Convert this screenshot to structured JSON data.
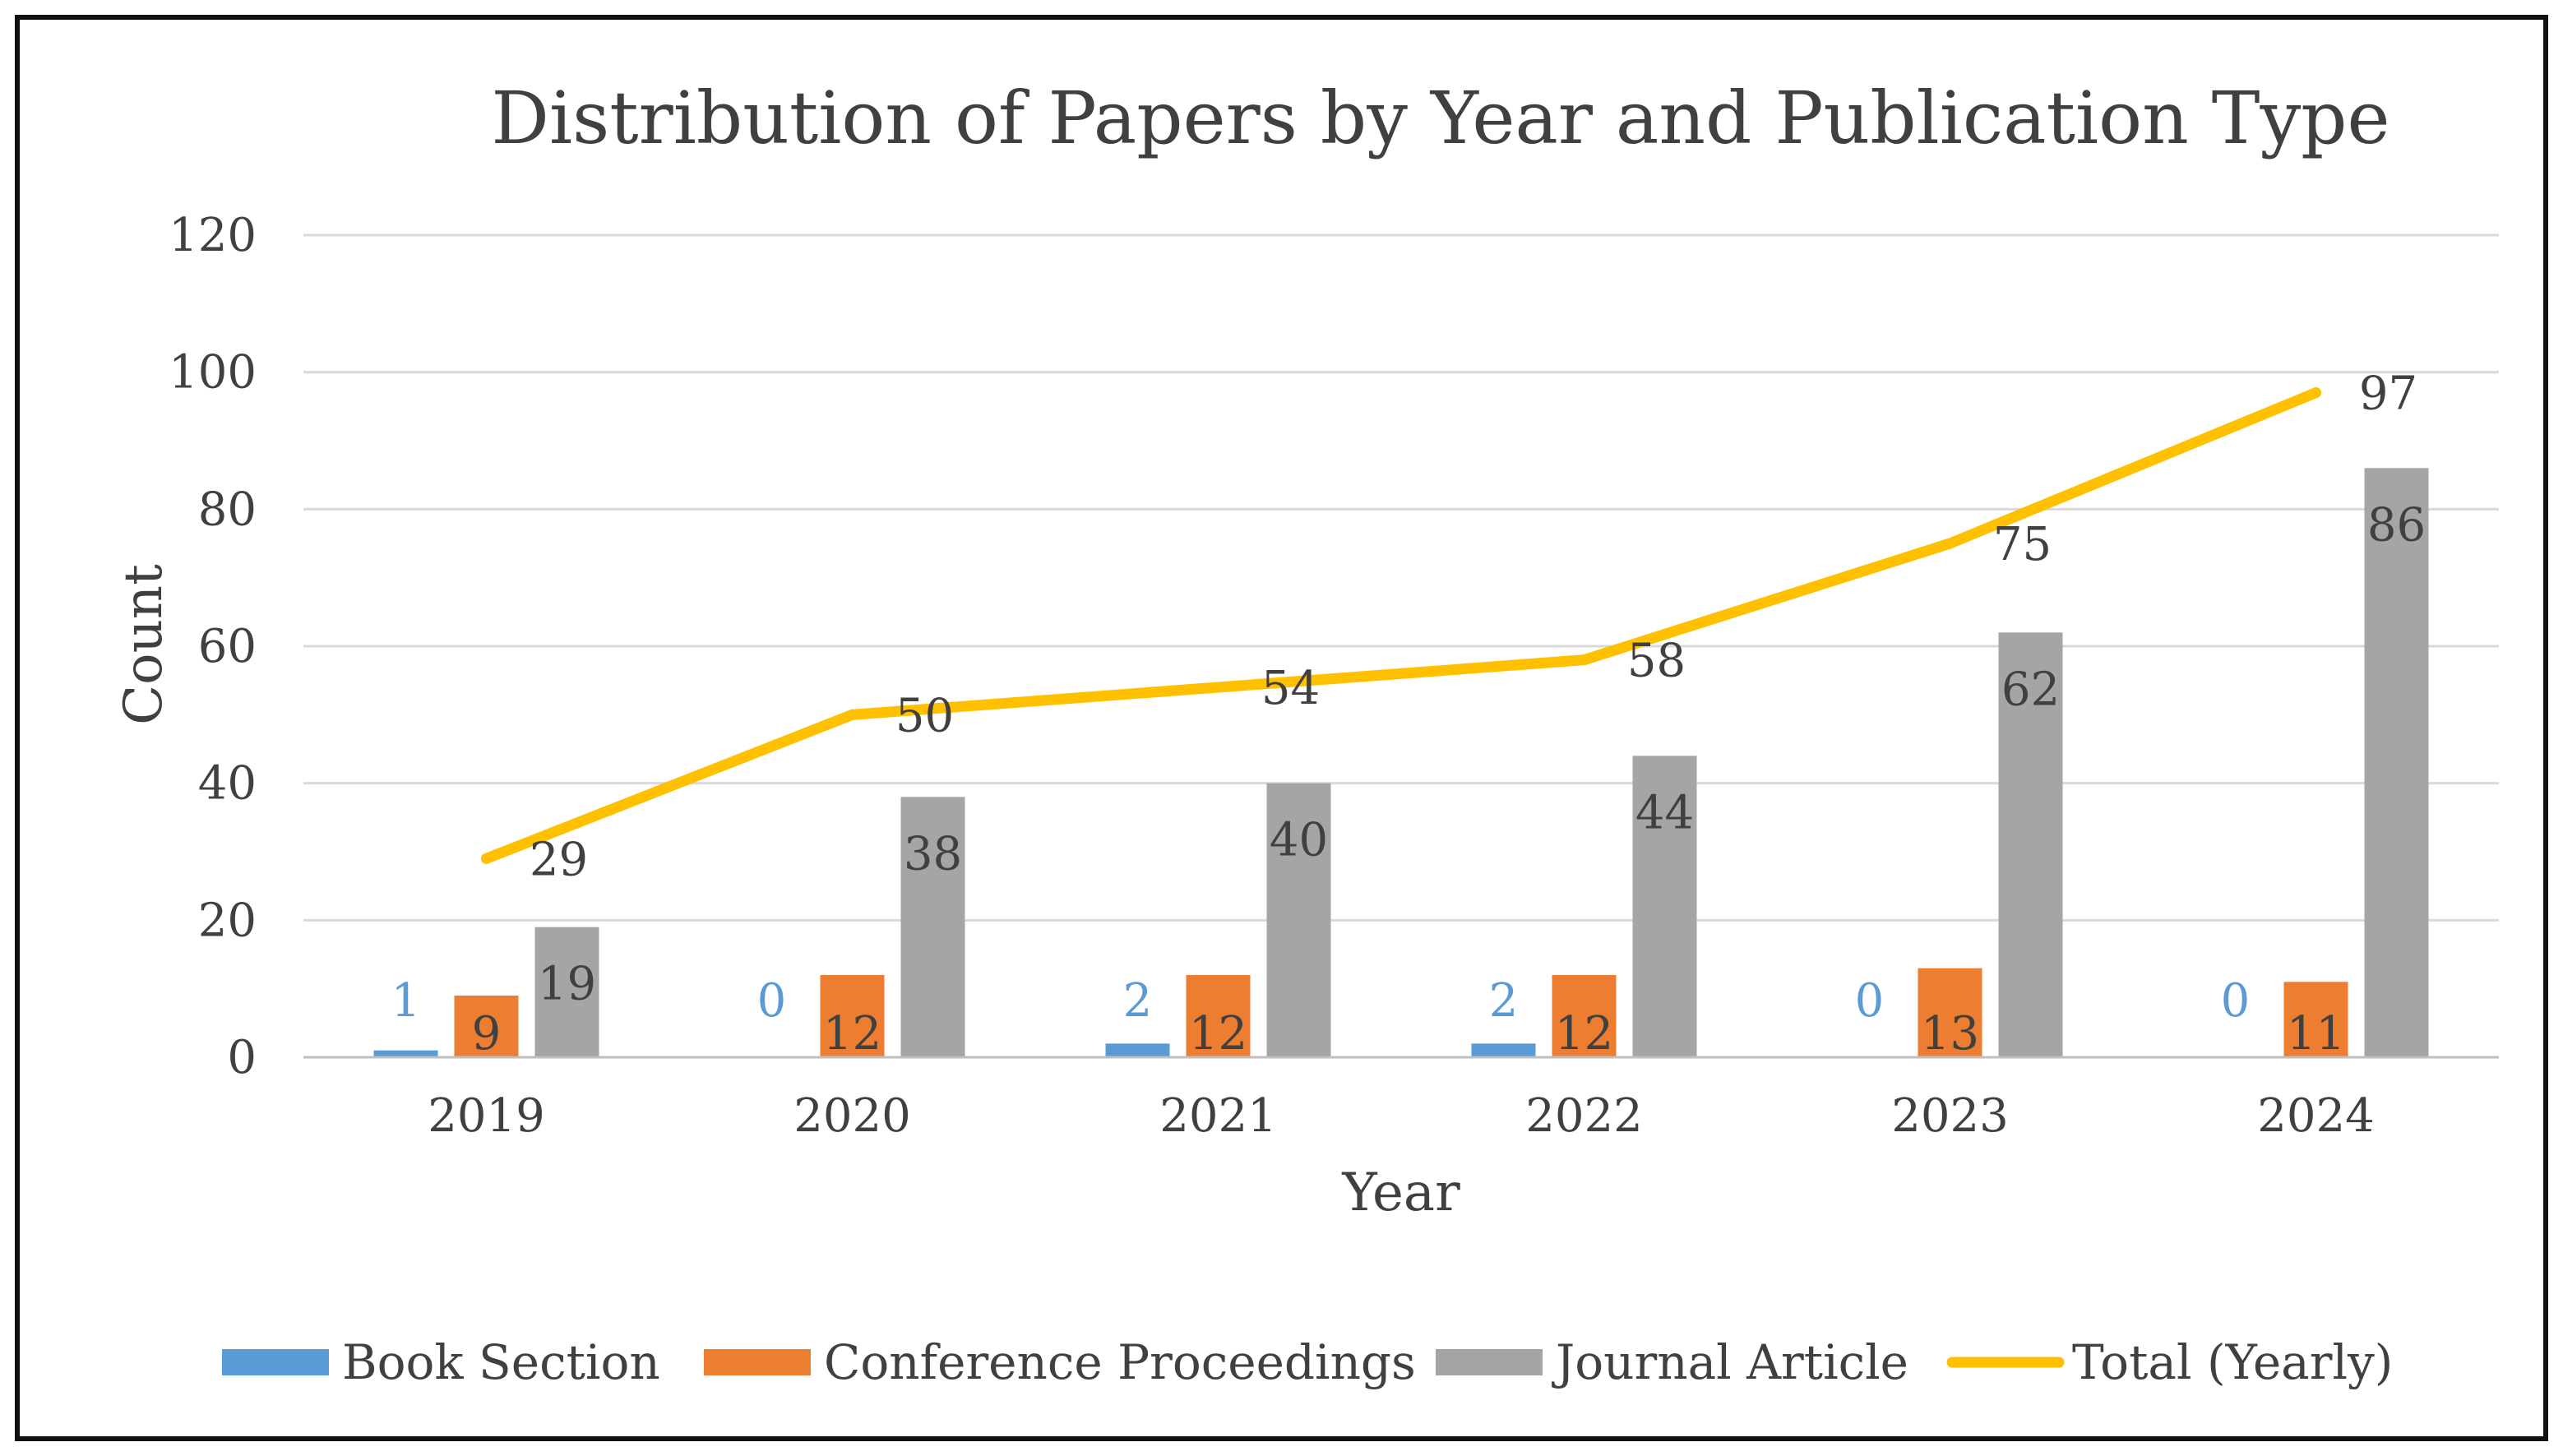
{
  "chart_data": {
    "type": "bar",
    "title": "Distribution of Papers by Year and Publication Type",
    "xlabel": "Year",
    "ylabel": "Count",
    "categories": [
      "2019",
      "2020",
      "2021",
      "2022",
      "2023",
      "2024"
    ],
    "ylim": [
      0,
      120
    ],
    "yticks": [
      "0",
      "20",
      "40",
      "60",
      "80",
      "100",
      "120"
    ],
    "grid": true,
    "legend_position": "bottom",
    "series": [
      {
        "name": "Book Section",
        "kind": "bar",
        "color": "#5B9BD5",
        "label_color": "#5B9BD5",
        "values": [
          1,
          0,
          2,
          2,
          0,
          0
        ],
        "labels": [
          "1",
          "0",
          "2",
          "2",
          "0",
          "0"
        ]
      },
      {
        "name": "Conference Proceedings",
        "kind": "bar",
        "color": "#ED7D31",
        "label_color": "#404040",
        "values": [
          9,
          12,
          12,
          12,
          13,
          11
        ],
        "labels": [
          "9",
          "12",
          "12",
          "12",
          "13",
          "11"
        ]
      },
      {
        "name": "Journal Article",
        "kind": "bar",
        "color": "#A5A5A5",
        "label_color": "#404040",
        "values": [
          19,
          38,
          40,
          44,
          62,
          86
        ],
        "labels": [
          "19",
          "38",
          "40",
          "44",
          "62",
          "86"
        ]
      },
      {
        "name": "Total (Yearly)",
        "kind": "line",
        "color": "#FFC000",
        "label_color": "#404040",
        "values": [
          29,
          50,
          54,
          58,
          75,
          97
        ],
        "labels": [
          "29",
          "50",
          "54",
          "58",
          "75",
          "97"
        ]
      }
    ]
  }
}
